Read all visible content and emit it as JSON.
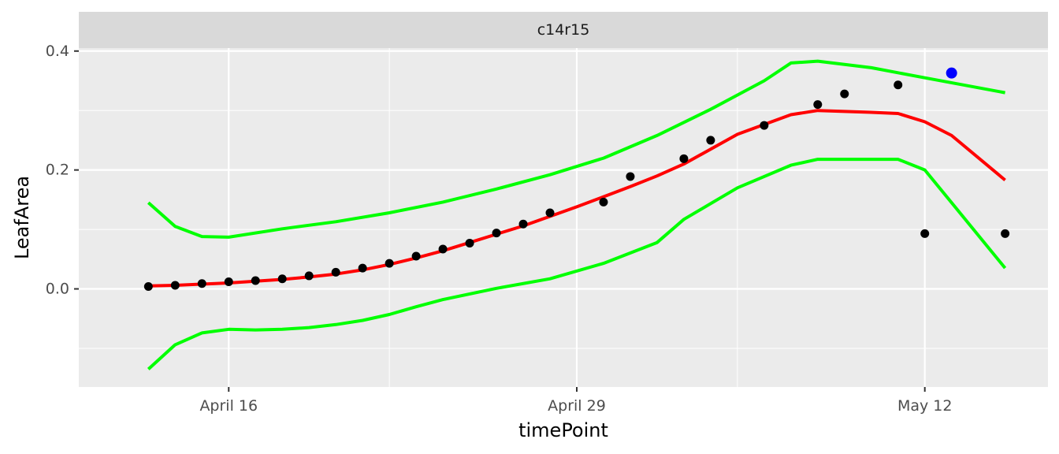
{
  "chart_data": {
    "type": "scatter",
    "panel_title": "c14r15",
    "xlabel": "timePoint",
    "ylabel": "LeafArea",
    "x_axis": {
      "type": "date",
      "range": [
        "2024-04-11",
        "2024-05-16"
      ],
      "ticks": [
        "April 16",
        "April 29",
        "May 12"
      ],
      "tick_dates": [
        "2024-04-16",
        "2024-04-29",
        "2024-05-12"
      ],
      "minor_tick_dates": [
        "2024-04-22",
        "2024-05-05"
      ]
    },
    "y_axis": {
      "range": [
        -0.165,
        0.405
      ],
      "ticks": [
        0.0,
        0.2,
        0.4
      ],
      "tick_labels": [
        "0.0",
        "0.2",
        "0.4"
      ],
      "minor_ticks": [
        -0.1,
        0.1,
        0.3
      ]
    },
    "grid": true,
    "colors": {
      "panel_bg": "#ebebeb",
      "grid": "#ffffff",
      "strip_bg": "#d9d9d9",
      "observed": "#000000",
      "highlight": "#0000ff",
      "fit": "#ff0000",
      "bounds": "#00ff00"
    },
    "observed_points": {
      "x": [
        "2024-04-13",
        "2024-04-14",
        "2024-04-15",
        "2024-04-16",
        "2024-04-17",
        "2024-04-18",
        "2024-04-19",
        "2024-04-20",
        "2024-04-21",
        "2024-04-22",
        "2024-04-23",
        "2024-04-24",
        "2024-04-25",
        "2024-04-26",
        "2024-04-27",
        "2024-04-28",
        "2024-04-30",
        "2024-05-01",
        "2024-05-03",
        "2024-05-04",
        "2024-05-06",
        "2024-05-08",
        "2024-05-09",
        "2024-05-11",
        "2024-05-12",
        "2024-05-15"
      ],
      "y": [
        0.004,
        0.006,
        0.009,
        0.012,
        0.014,
        0.017,
        0.022,
        0.028,
        0.035,
        0.043,
        0.055,
        0.067,
        0.077,
        0.094,
        0.109,
        0.128,
        0.146,
        0.189,
        0.219,
        0.25,
        0.275,
        0.31,
        0.328,
        0.343,
        0.093,
        0.093
      ]
    },
    "highlight_point": {
      "x": "2024-05-13",
      "y": 0.363
    },
    "fit_line": {
      "x": [
        "2024-04-13",
        "2024-04-14",
        "2024-04-15",
        "2024-04-16",
        "2024-04-17",
        "2024-04-18",
        "2024-04-19",
        "2024-04-20",
        "2024-04-21",
        "2024-04-22",
        "2024-04-23",
        "2024-04-24",
        "2024-04-25",
        "2024-04-26",
        "2024-04-27",
        "2024-04-28",
        "2024-04-29",
        "2024-04-30",
        "2024-05-01",
        "2024-05-02",
        "2024-05-03",
        "2024-05-05",
        "2024-05-07",
        "2024-05-08",
        "2024-05-10",
        "2024-05-11",
        "2024-05-12",
        "2024-05-13",
        "2024-05-15"
      ],
      "y": [
        0.005,
        0.006,
        0.008,
        0.01,
        0.013,
        0.016,
        0.02,
        0.025,
        0.032,
        0.041,
        0.052,
        0.064,
        0.078,
        0.092,
        0.106,
        0.122,
        0.138,
        0.155,
        0.172,
        0.19,
        0.21,
        0.26,
        0.293,
        0.3,
        0.297,
        0.295,
        0.281,
        0.258,
        0.183
      ]
    },
    "upper_bound": {
      "x": [
        "2024-04-13",
        "2024-04-14",
        "2024-04-15",
        "2024-04-16",
        "2024-04-18",
        "2024-04-20",
        "2024-04-22",
        "2024-04-24",
        "2024-04-26",
        "2024-04-28",
        "2024-04-30",
        "2024-05-02",
        "2024-05-04",
        "2024-05-06",
        "2024-05-07",
        "2024-05-08",
        "2024-05-10",
        "2024-05-12",
        "2024-05-15"
      ],
      "y": [
        0.145,
        0.105,
        0.088,
        0.087,
        0.101,
        0.113,
        0.128,
        0.146,
        0.168,
        0.192,
        0.22,
        0.258,
        0.302,
        0.35,
        0.38,
        0.383,
        0.372,
        0.355,
        0.33
      ]
    },
    "lower_bound": {
      "x": [
        "2024-04-13",
        "2024-04-14",
        "2024-04-15",
        "2024-04-16",
        "2024-04-17",
        "2024-04-18",
        "2024-04-19",
        "2024-04-20",
        "2024-04-21",
        "2024-04-22",
        "2024-04-23",
        "2024-04-24",
        "2024-04-26",
        "2024-04-28",
        "2024-04-30",
        "2024-05-02",
        "2024-05-03",
        "2024-05-05",
        "2024-05-07",
        "2024-05-08",
        "2024-05-10",
        "2024-05-11",
        "2024-05-12",
        "2024-05-15"
      ],
      "y": [
        -0.135,
        -0.094,
        -0.074,
        -0.068,
        -0.069,
        -0.068,
        -0.065,
        -0.06,
        -0.053,
        -0.043,
        -0.03,
        -0.018,
        0.001,
        0.017,
        0.043,
        0.078,
        0.117,
        0.17,
        0.208,
        0.218,
        0.218,
        0.218,
        0.2,
        0.035
      ]
    }
  }
}
